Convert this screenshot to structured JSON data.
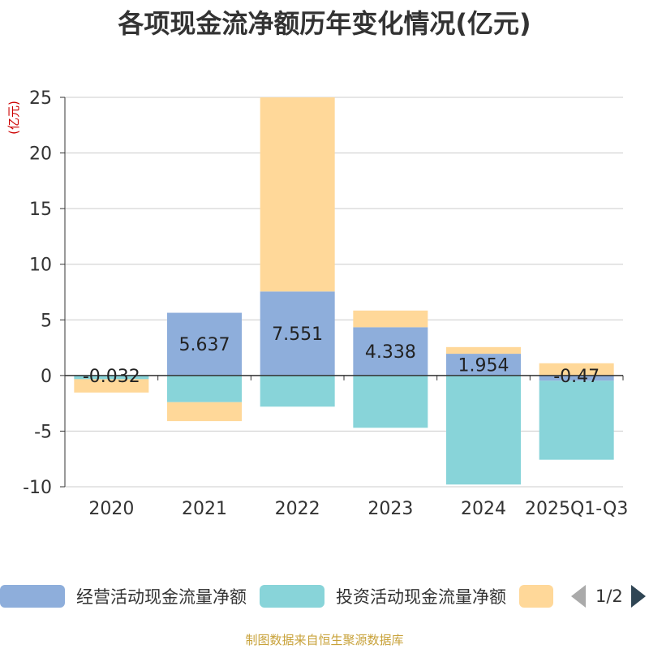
{
  "chart_data": {
    "type": "bar",
    "stacked": true,
    "title": "各项现金流净额历年变化情况(亿元)",
    "ylabel": "(亿元)",
    "ylim": [
      -10,
      25
    ],
    "yticks": [
      -10,
      -5,
      0,
      5,
      10,
      15,
      20,
      25
    ],
    "ytick_labels": [
      "-10",
      "-5",
      "0",
      "5",
      "10",
      "15",
      "20",
      "25"
    ],
    "categories": [
      "2020",
      "2021",
      "2022",
      "2023",
      "2024",
      "2025Q1-Q3"
    ],
    "series": [
      {
        "name": "经营活动现金流量净额",
        "color": "#8eaedb",
        "values": [
          -0.032,
          5.637,
          7.551,
          4.338,
          1.954,
          -0.47
        ],
        "labels": [
          "-0.032",
          "5.637",
          "7.551",
          "4.338",
          "1.954",
          "-0.47"
        ]
      },
      {
        "name": "投资活动现金流量净额",
        "color": "#88d4d9",
        "values": [
          -0.3,
          -2.4,
          -2.8,
          -4.7,
          -9.8,
          -7.1
        ]
      },
      {
        "name": "",
        "color": "#ffd899",
        "values": [
          -1.2,
          -1.7,
          17.5,
          1.5,
          0.6,
          1.1
        ]
      }
    ],
    "legend_position": "bottom",
    "gridlines": true
  },
  "legend": {
    "items": [
      {
        "label": "经营活动现金流量净额",
        "color": "#8eaedb"
      },
      {
        "label": "投资活动现金流量净额",
        "color": "#88d4d9"
      },
      {
        "label": "",
        "color": "#ffd899"
      }
    ],
    "page": "1/2"
  },
  "source_text": "制图数据来自恒生聚源数据库"
}
